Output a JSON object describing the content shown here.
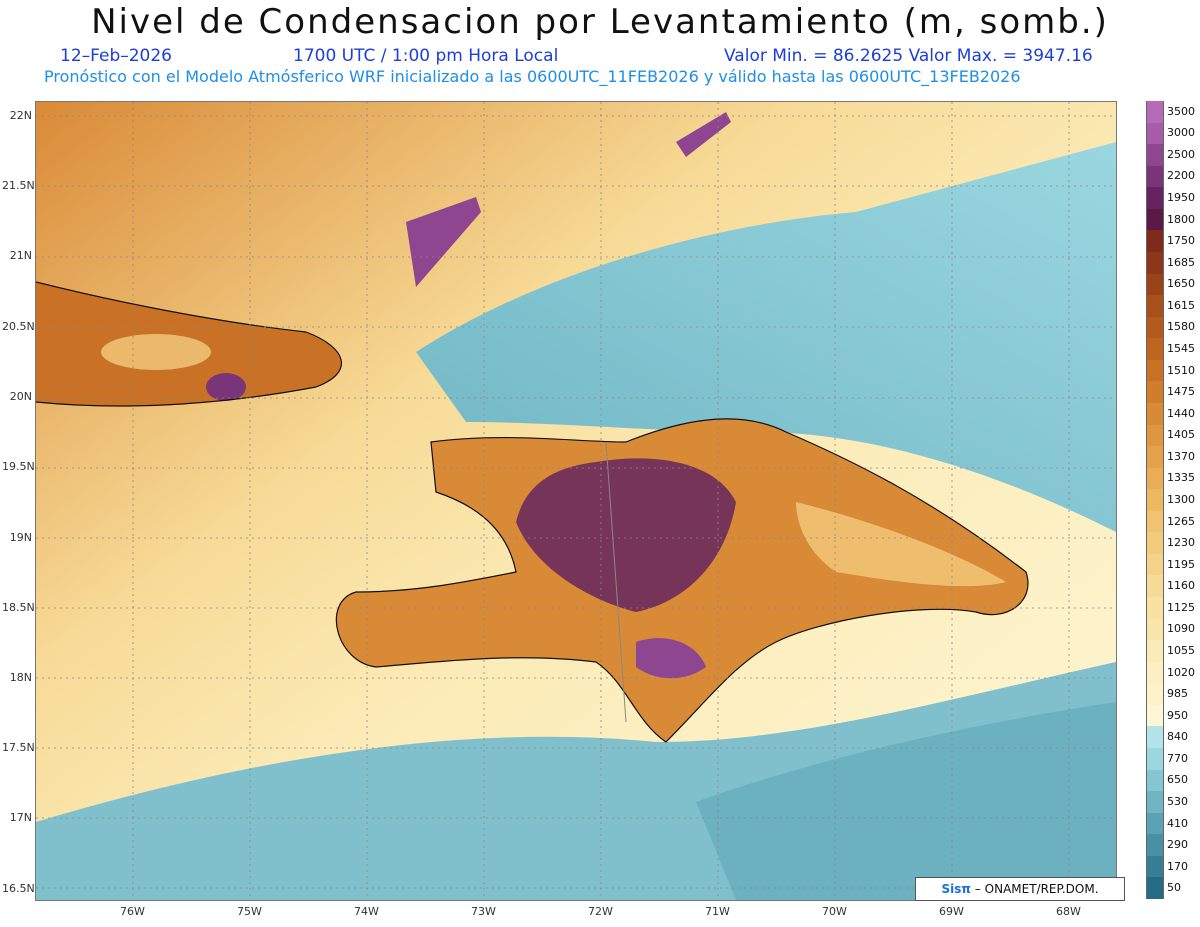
{
  "header": {
    "title": "Nivel de Condensacion por Levantamiento (m, somb.)",
    "date": "12–Feb–2026",
    "time": "1700 UTC / 1:00 pm Hora Local",
    "min_max": "Valor Min. = 86.2625  Valor Max. = 3947.16",
    "model_info": "Pronóstico con el Modelo Atmósferico WRF inicializado a las 0600UTC_11FEB2026 y válido hasta las  0600UTC_13FEB2026"
  },
  "axes": {
    "lat_labels": [
      "22N",
      "21.5N",
      "21N",
      "20.5N",
      "20N",
      "19.5N",
      "19N",
      "18.5N",
      "18N",
      "17.5N",
      "17N",
      "16.5N"
    ],
    "lon_labels": [
      "76W",
      "75W",
      "74W",
      "73W",
      "72W",
      "71W",
      "70W",
      "69W",
      "68W"
    ]
  },
  "colorbar": {
    "labels": [
      "3500",
      "3000",
      "2500",
      "2200",
      "1950",
      "1800",
      "1750",
      "1685",
      "1650",
      "1615",
      "1580",
      "1545",
      "1510",
      "1475",
      "1440",
      "1405",
      "1370",
      "1335",
      "1300",
      "1265",
      "1230",
      "1195",
      "1160",
      "1125",
      "1090",
      "1055",
      "1020",
      "985",
      "950",
      "840",
      "770",
      "650",
      "530",
      "410",
      "290",
      "170",
      "50"
    ],
    "colors": [
      "#b66ab8",
      "#a65ca9",
      "#8e4690",
      "#7a3478",
      "#65245f",
      "#5a1a48",
      "#7f2a1c",
      "#8d3619",
      "#9b4318",
      "#a84f1a",
      "#b35a1c",
      "#bf6520",
      "#c97226",
      "#d27d2d",
      "#d98a36",
      "#df9640",
      "#e5a24b",
      "#eaad56",
      "#eeb863",
      "#f1c270",
      "#f3cb7d",
      "#f5d38a",
      "#f7da96",
      "#f9e1a2",
      "#fae6ad",
      "#fbebb7",
      "#fcefc1",
      "#fdf3cb",
      "#fef7d6",
      "#b2e4ea",
      "#9ad7e0",
      "#84c7d3",
      "#6fb5c4",
      "#5ba2b4",
      "#4990a5",
      "#367e96",
      "#246b86"
    ]
  },
  "regions": [
    {
      "name": "hispaniola",
      "color": "#e8a656"
    },
    {
      "name": "ocean-north",
      "color": "#8fd0da"
    },
    {
      "name": "cuba",
      "color": "#d0823a"
    }
  ],
  "credit": {
    "sis": "Sisπ",
    "org": "– ONAMET/REP.DOM."
  }
}
